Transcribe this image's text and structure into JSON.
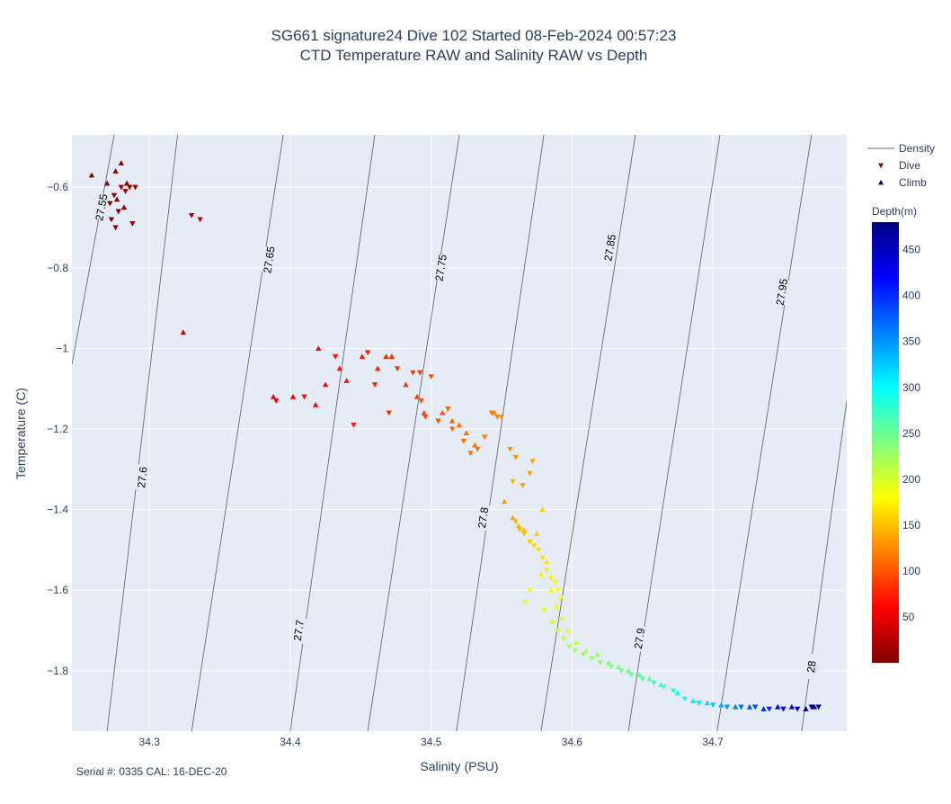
{
  "title_line1": "SG661 signature24 Dive 102 Started 08-Feb-2024 00:57:23",
  "title_line2": "CTD Temperature RAW and Salinity RAW vs Depth",
  "footer": "Serial #: 0335  CAL: 16-DEC-20",
  "colors": {
    "plot_bg": "#e5ecf6",
    "grid": "#ffffff",
    "contour": "#6b6b6b"
  },
  "chart_data": {
    "type": "scatter",
    "xlabel": "Salinity (PSU)",
    "ylabel": "Temperature (C)",
    "xlim": [
      34.245,
      34.795
    ],
    "ylim": [
      -1.95,
      -0.47
    ],
    "xticks": [
      34.3,
      34.4,
      34.5,
      34.6,
      34.7
    ],
    "xtick_labels": [
      "34.3",
      "34.4",
      "34.5",
      "34.6",
      "34.7"
    ],
    "yticks": [
      -0.6,
      -0.8,
      -1.0,
      -1.2,
      -1.4,
      -1.6,
      -1.8
    ],
    "ytick_labels": [
      "−0.6",
      "−0.8",
      "−1",
      "−1.2",
      "−1.4",
      "−1.6",
      "−1.8"
    ],
    "grid": true,
    "legend": {
      "position": "top-right",
      "items": [
        {
          "name": "Density",
          "symbol": "line"
        },
        {
          "name": "Dive",
          "symbol": "triangle-down"
        },
        {
          "name": "Climb",
          "symbol": "triangle-up"
        }
      ]
    },
    "colorbar": {
      "title": "Depth(m)",
      "range": [
        0,
        480
      ],
      "ticks": [
        50,
        100,
        150,
        200,
        250,
        300,
        350,
        400,
        450
      ],
      "tick_labels": [
        "50",
        "100",
        "150",
        "200",
        "250",
        "300",
        "350",
        "400",
        "450"
      ],
      "colorscale": [
        "#7f0000",
        "#ff0000",
        "#ff7f00",
        "#ffff00",
        "#7fff7f",
        "#00ffff",
        "#007fff",
        "#0000ff",
        "#00007f"
      ]
    },
    "density_contours": [
      {
        "label": "27.55",
        "lines": [
          [
            34.245,
            -1.04
          ],
          [
            34.275,
            -0.47
          ]
        ]
      },
      {
        "label": "27.6",
        "lines": [
          [
            34.27,
            -1.95
          ],
          [
            34.32,
            -0.47
          ]
        ]
      },
      {
        "label": "27.65",
        "lines": [
          [
            34.33,
            -1.95
          ],
          [
            34.395,
            -0.47
          ]
        ]
      },
      {
        "label": "27.7",
        "lines": [
          [
            34.4,
            -1.95
          ],
          [
            34.46,
            -0.47
          ]
        ]
      },
      {
        "label": "27.75",
        "lines": [
          [
            34.455,
            -1.95
          ],
          [
            34.52,
            -0.47
          ]
        ]
      },
      {
        "label": "27.8",
        "lines": [
          [
            34.518,
            -1.95
          ],
          [
            34.58,
            -0.47
          ]
        ]
      },
      {
        "label": "27.85",
        "lines": [
          [
            34.578,
            -1.95
          ],
          [
            34.645,
            -0.47
          ]
        ]
      },
      {
        "label": "27.9",
        "lines": [
          [
            34.64,
            -1.95
          ],
          [
            34.705,
            -0.47
          ]
        ]
      },
      {
        "label": "27.95",
        "lines": [
          [
            34.703,
            -1.95
          ],
          [
            34.77,
            -0.47
          ]
        ]
      },
      {
        "label": "28",
        "lines": [
          [
            34.763,
            -1.95
          ],
          [
            34.795,
            -1.13
          ]
        ]
      }
    ],
    "contour_label_positions": [
      {
        "label": "27.55",
        "x": 34.266,
        "y": -0.65
      },
      {
        "label": "27.6",
        "x": 34.295,
        "y": -1.32
      },
      {
        "label": "27.65",
        "x": 34.385,
        "y": -0.78
      },
      {
        "label": "27.7",
        "x": 34.406,
        "y": -1.7
      },
      {
        "label": "27.75",
        "x": 34.507,
        "y": -0.8
      },
      {
        "label": "27.8",
        "x": 34.537,
        "y": -1.42
      },
      {
        "label": "27.85",
        "x": 34.627,
        "y": -0.75
      },
      {
        "label": "27.9",
        "x": 34.648,
        "y": -1.72
      },
      {
        "label": "27.95",
        "x": 34.749,
        "y": -0.86
      },
      {
        "label": "28",
        "x": 34.77,
        "y": -1.79
      }
    ],
    "series": [
      {
        "name": "Dive",
        "symbol": "triangle-down",
        "points": [
          [
            34.272,
            -0.64,
            8
          ],
          [
            34.275,
            -0.62,
            10
          ],
          [
            34.28,
            -0.6,
            12
          ],
          [
            34.283,
            -0.61,
            12
          ],
          [
            34.286,
            -0.6,
            14
          ],
          [
            34.29,
            -0.6,
            15
          ],
          [
            34.278,
            -0.66,
            10
          ],
          [
            34.273,
            -0.68,
            8
          ],
          [
            34.276,
            -0.7,
            6
          ],
          [
            34.288,
            -0.69,
            12
          ],
          [
            34.336,
            -0.68,
            30
          ],
          [
            34.33,
            -0.67,
            28
          ],
          [
            34.39,
            -1.13,
            60
          ],
          [
            34.41,
            -1.12,
            65
          ],
          [
            34.432,
            -1.02,
            70
          ],
          [
            34.445,
            -1.19,
            72
          ],
          [
            34.455,
            -1.01,
            75
          ],
          [
            34.46,
            -1.09,
            78
          ],
          [
            34.47,
            -1.16,
            80
          ],
          [
            34.476,
            -1.05,
            82
          ],
          [
            34.487,
            -1.06,
            85
          ],
          [
            34.492,
            -1.06,
            88
          ],
          [
            34.493,
            -1.13,
            92
          ],
          [
            34.496,
            -1.17,
            95
          ],
          [
            34.5,
            -1.07,
            96
          ],
          [
            34.505,
            -1.18,
            100
          ],
          [
            34.512,
            -1.15,
            105
          ],
          [
            34.515,
            -1.2,
            108
          ],
          [
            34.523,
            -1.23,
            112
          ],
          [
            34.528,
            -1.26,
            115
          ],
          [
            34.533,
            -1.25,
            118
          ],
          [
            34.538,
            -1.22,
            120
          ],
          [
            34.543,
            -1.16,
            122
          ],
          [
            34.547,
            -1.17,
            125
          ],
          [
            34.55,
            -1.17,
            128
          ],
          [
            34.556,
            -1.25,
            130
          ],
          [
            34.56,
            -1.27,
            132
          ],
          [
            34.565,
            -1.34,
            135
          ],
          [
            34.57,
            -1.31,
            138
          ],
          [
            34.572,
            -1.28,
            140
          ],
          [
            34.558,
            -1.33,
            142
          ],
          [
            34.56,
            -1.43,
            148
          ],
          [
            34.563,
            -1.45,
            150
          ],
          [
            34.566,
            -1.46,
            152
          ],
          [
            34.57,
            -1.48,
            156
          ],
          [
            34.573,
            -1.49,
            160
          ],
          [
            34.576,
            -1.5,
            163
          ],
          [
            34.579,
            -1.52,
            166
          ],
          [
            34.582,
            -1.55,
            170
          ],
          [
            34.585,
            -1.57,
            175
          ],
          [
            34.588,
            -1.58,
            178
          ],
          [
            34.59,
            -1.6,
            180
          ],
          [
            34.592,
            -1.62,
            185
          ],
          [
            34.57,
            -1.6,
            188
          ],
          [
            34.567,
            -1.63,
            190
          ],
          [
            34.58,
            -1.65,
            195
          ],
          [
            34.586,
            -1.68,
            200
          ],
          [
            34.59,
            -1.7,
            205
          ],
          [
            34.594,
            -1.72,
            210
          ],
          [
            34.598,
            -1.74,
            215
          ],
          [
            34.602,
            -1.75,
            220
          ],
          [
            34.608,
            -1.76,
            225
          ],
          [
            34.614,
            -1.77,
            230
          ],
          [
            34.62,
            -1.78,
            235
          ],
          [
            34.628,
            -1.79,
            240
          ],
          [
            34.635,
            -1.8,
            245
          ],
          [
            34.642,
            -1.81,
            250
          ],
          [
            34.65,
            -1.82,
            258
          ],
          [
            34.658,
            -1.83,
            266
          ],
          [
            34.665,
            -1.84,
            275
          ],
          [
            34.672,
            -1.85,
            285
          ],
          [
            34.68,
            -1.87,
            295
          ],
          [
            34.69,
            -1.88,
            310
          ],
          [
            34.7,
            -1.885,
            325
          ],
          [
            34.71,
            -1.89,
            345
          ],
          [
            34.72,
            -1.89,
            365
          ],
          [
            34.73,
            -1.89,
            385
          ],
          [
            34.74,
            -1.895,
            405
          ],
          [
            34.75,
            -1.895,
            425
          ],
          [
            34.76,
            -1.895,
            445
          ],
          [
            34.77,
            -1.89,
            470
          ],
          [
            34.775,
            -1.89,
            476
          ]
        ]
      },
      {
        "name": "Climb",
        "symbol": "triangle-up",
        "points": [
          [
            34.259,
            -0.57,
            5
          ],
          [
            34.27,
            -0.59,
            6
          ],
          [
            34.276,
            -0.56,
            7
          ],
          [
            34.28,
            -0.54,
            6
          ],
          [
            34.284,
            -0.59,
            8
          ],
          [
            34.277,
            -0.63,
            7
          ],
          [
            34.282,
            -0.65,
            8
          ],
          [
            34.324,
            -0.96,
            40
          ],
          [
            34.388,
            -1.12,
            55
          ],
          [
            34.402,
            -1.12,
            58
          ],
          [
            34.418,
            -1.14,
            62
          ],
          [
            34.42,
            -1.0,
            60
          ],
          [
            34.425,
            -1.09,
            63
          ],
          [
            34.435,
            -1.05,
            66
          ],
          [
            34.44,
            -1.08,
            68
          ],
          [
            34.451,
            -1.02,
            72
          ],
          [
            34.462,
            -1.05,
            75
          ],
          [
            34.468,
            -1.02,
            78
          ],
          [
            34.472,
            -1.02,
            80
          ],
          [
            34.482,
            -1.09,
            85
          ],
          [
            34.49,
            -1.12,
            90
          ],
          [
            34.495,
            -1.16,
            95
          ],
          [
            34.508,
            -1.16,
            100
          ],
          [
            34.515,
            -1.18,
            105
          ],
          [
            34.52,
            -1.19,
            110
          ],
          [
            34.525,
            -1.21,
            112
          ],
          [
            34.531,
            -1.24,
            116
          ],
          [
            34.545,
            -1.16,
            124
          ],
          [
            34.552,
            -1.38,
            135
          ],
          [
            34.558,
            -1.42,
            140
          ],
          [
            34.562,
            -1.44,
            146
          ],
          [
            34.566,
            -1.45,
            150
          ],
          [
            34.575,
            -1.46,
            155
          ],
          [
            34.579,
            -1.4,
            160
          ],
          [
            34.582,
            -1.53,
            168
          ],
          [
            34.578,
            -1.56,
            172
          ],
          [
            34.585,
            -1.6,
            178
          ],
          [
            34.589,
            -1.64,
            185
          ],
          [
            34.593,
            -1.67,
            192
          ],
          [
            34.597,
            -1.7,
            200
          ],
          [
            34.603,
            -1.73,
            208
          ],
          [
            34.61,
            -1.75,
            218
          ],
          [
            34.618,
            -1.76,
            228
          ],
          [
            34.626,
            -1.78,
            238
          ],
          [
            34.633,
            -1.79,
            244
          ],
          [
            34.64,
            -1.8,
            248
          ],
          [
            34.648,
            -1.81,
            255
          ],
          [
            34.655,
            -1.82,
            262
          ],
          [
            34.663,
            -1.835,
            272
          ],
          [
            34.675,
            -1.855,
            290
          ],
          [
            34.686,
            -1.875,
            305
          ],
          [
            34.696,
            -1.88,
            320
          ],
          [
            34.706,
            -1.885,
            340
          ],
          [
            34.716,
            -1.89,
            360
          ],
          [
            34.726,
            -1.89,
            380
          ],
          [
            34.736,
            -1.895,
            400
          ],
          [
            34.746,
            -1.89,
            420
          ],
          [
            34.756,
            -1.89,
            440
          ],
          [
            34.766,
            -1.895,
            460
          ],
          [
            34.772,
            -1.89,
            474
          ]
        ]
      }
    ]
  }
}
